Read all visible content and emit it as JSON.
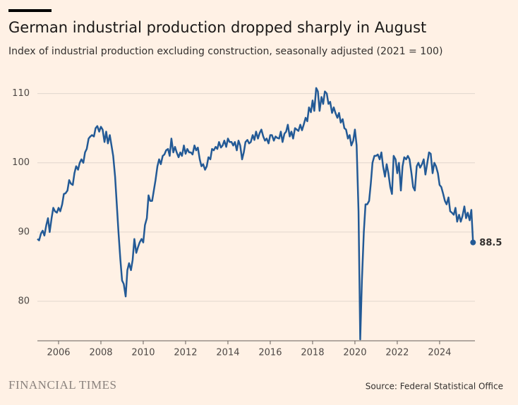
{
  "chart_data": {
    "type": "line",
    "title": "German industrial production dropped sharply in August",
    "subtitle": "Index of industrial production excluding construction, seasonally adjusted (2021 = 100)",
    "source": "Source: Federal Statistical Office",
    "brand": "FINANCIAL TIMES",
    "xlim": [
      2005,
      2025.67
    ],
    "xticks": [
      2006,
      2008,
      2010,
      2012,
      2014,
      2016,
      2018,
      2020,
      2022,
      2024
    ],
    "ylim": [
      74.3,
      112.3
    ],
    "yticks": [
      80,
      90,
      100,
      110
    ],
    "grid": true,
    "x": [
      2005.0,
      2005.08,
      2005.17,
      2005.25,
      2005.33,
      2005.42,
      2005.5,
      2005.58,
      2005.67,
      2005.75,
      2005.83,
      2005.92,
      2006.0,
      2006.08,
      2006.17,
      2006.25,
      2006.33,
      2006.42,
      2006.5,
      2006.58,
      2006.67,
      2006.75,
      2006.83,
      2006.92,
      2007.0,
      2007.08,
      2007.17,
      2007.25,
      2007.33,
      2007.42,
      2007.5,
      2007.58,
      2007.67,
      2007.75,
      2007.83,
      2007.92,
      2008.0,
      2008.08,
      2008.17,
      2008.25,
      2008.33,
      2008.42,
      2008.5,
      2008.58,
      2008.67,
      2008.75,
      2008.83,
      2008.92,
      2009.0,
      2009.08,
      2009.17,
      2009.25,
      2009.33,
      2009.42,
      2009.5,
      2009.58,
      2009.67,
      2009.75,
      2009.83,
      2009.92,
      2010.0,
      2010.08,
      2010.17,
      2010.25,
      2010.33,
      2010.42,
      2010.5,
      2010.58,
      2010.67,
      2010.75,
      2010.83,
      2010.92,
      2011.0,
      2011.08,
      2011.17,
      2011.25,
      2011.33,
      2011.42,
      2011.5,
      2011.58,
      2011.67,
      2011.75,
      2011.83,
      2011.92,
      2012.0,
      2012.08,
      2012.17,
      2012.25,
      2012.33,
      2012.42,
      2012.5,
      2012.58,
      2012.67,
      2012.75,
      2012.83,
      2012.92,
      2013.0,
      2013.08,
      2013.17,
      2013.25,
      2013.33,
      2013.42,
      2013.5,
      2013.58,
      2013.67,
      2013.75,
      2013.83,
      2013.92,
      2014.0,
      2014.08,
      2014.17,
      2014.25,
      2014.33,
      2014.42,
      2014.5,
      2014.58,
      2014.67,
      2014.75,
      2014.83,
      2014.92,
      2015.0,
      2015.08,
      2015.17,
      2015.25,
      2015.33,
      2015.42,
      2015.5,
      2015.58,
      2015.67,
      2015.75,
      2015.83,
      2015.92,
      2016.0,
      2016.08,
      2016.17,
      2016.25,
      2016.33,
      2016.42,
      2016.5,
      2016.58,
      2016.67,
      2016.75,
      2016.83,
      2016.92,
      2017.0,
      2017.08,
      2017.17,
      2017.25,
      2017.33,
      2017.42,
      2017.5,
      2017.58,
      2017.67,
      2017.75,
      2017.83,
      2017.92,
      2018.0,
      2018.08,
      2018.17,
      2018.25,
      2018.33,
      2018.42,
      2018.5,
      2018.58,
      2018.67,
      2018.75,
      2018.83,
      2018.92,
      2019.0,
      2019.08,
      2019.17,
      2019.25,
      2019.33,
      2019.42,
      2019.5,
      2019.58,
      2019.67,
      2019.75,
      2019.83,
      2019.92,
      2020.0,
      2020.08,
      2020.17,
      2020.25,
      2020.33,
      2020.42,
      2020.5,
      2020.58,
      2020.67,
      2020.75,
      2020.83,
      2020.92,
      2021.0,
      2021.08,
      2021.17,
      2021.25,
      2021.33,
      2021.42,
      2021.5,
      2021.58,
      2021.67,
      2021.75,
      2021.83,
      2021.92,
      2022.0,
      2022.08,
      2022.17,
      2022.25,
      2022.33,
      2022.42,
      2022.5,
      2022.58,
      2022.67,
      2022.75,
      2022.83,
      2022.92,
      2023.0,
      2023.08,
      2023.17,
      2023.25,
      2023.33,
      2023.42,
      2023.5,
      2023.58,
      2023.67,
      2023.75,
      2023.83,
      2023.92,
      2024.0,
      2024.08,
      2024.17,
      2024.25,
      2024.33,
      2024.42,
      2024.5,
      2024.58,
      2024.67,
      2024.75,
      2024.83,
      2024.92,
      2025.0,
      2025.08,
      2025.17,
      2025.25,
      2025.33,
      2025.42,
      2025.5,
      2025.58
    ],
    "series": [
      {
        "color": "#235a96",
        "values": [
          89,
          88.8,
          89.8,
          90.2,
          89.5,
          91,
          92,
          90,
          92,
          93.5,
          93,
          92.8,
          93.5,
          93,
          94,
          95.5,
          95.6,
          96,
          97.5,
          97,
          96.8,
          98.5,
          99.5,
          99,
          100,
          100.5,
          100,
          101.5,
          102,
          103.5,
          103.8,
          104,
          103.8,
          105,
          105.3,
          104.5,
          105.2,
          104.8,
          103,
          104.5,
          102.8,
          104,
          102.5,
          101,
          98,
          94,
          90,
          86,
          83,
          82.5,
          80.7,
          84.5,
          85.5,
          84.5,
          86,
          89,
          87,
          87.8,
          88.5,
          89,
          88.5,
          91,
          92,
          95.3,
          94.5,
          94.5,
          96,
          97.5,
          99.5,
          100.5,
          99.8,
          101,
          101.2,
          101.8,
          102,
          101,
          103.5,
          101.5,
          102.3,
          101.5,
          100.8,
          101.5,
          101,
          102.5,
          101.3,
          102,
          101.5,
          101.5,
          101.2,
          102.5,
          101.8,
          102.2,
          100.5,
          99.5,
          99.8,
          99,
          99.5,
          100.8,
          100.5,
          102,
          101.8,
          102.3,
          102,
          103,
          102.2,
          102.5,
          103.2,
          102.3,
          103.5,
          103,
          103,
          102.5,
          103,
          101.8,
          103.2,
          102.5,
          100.5,
          101.5,
          103,
          103.3,
          102.8,
          103,
          104,
          103.3,
          104.5,
          103.5,
          104.3,
          104.8,
          103.8,
          103.2,
          103.5,
          102.8,
          104,
          104,
          103.2,
          103.8,
          103.6,
          103.5,
          104.5,
          103,
          104.2,
          104.5,
          105.5,
          103.8,
          104.5,
          103.5,
          105,
          104.8,
          104.6,
          105.5,
          104.7,
          105.5,
          106.5,
          106,
          108,
          107.3,
          109,
          107.5,
          110.8,
          110.3,
          107.5,
          109.5,
          108.5,
          110.3,
          110,
          108.5,
          108.8,
          107.2,
          108,
          107.2,
          106.5,
          107.2,
          105.8,
          106.3,
          105,
          104.8,
          103.5,
          104,
          102.5,
          103.2,
          104.8,
          102.5,
          93,
          74.5,
          83,
          90,
          94,
          94,
          94.5,
          97,
          100,
          101,
          101,
          101.2,
          100.5,
          101.5,
          99.5,
          98,
          99.8,
          98.5,
          96.5,
          95.5,
          101,
          100.5,
          98.5,
          100,
          96,
          99.5,
          100.8,
          100.5,
          101,
          100.5,
          98.5,
          96.5,
          96,
          99.5,
          100,
          99.3,
          99.8,
          100.5,
          98.3,
          100,
          101.5,
          101.3,
          98.5,
          100,
          99.5,
          98.5,
          96.8,
          96.5,
          95.5,
          94.5,
          94,
          95,
          93,
          92.8,
          92.5,
          93.5,
          91.5,
          92.5,
          91.5,
          92.3,
          93.7,
          92,
          92.8,
          91.7,
          93.2,
          88.5
        ]
      }
    ]
  }
}
